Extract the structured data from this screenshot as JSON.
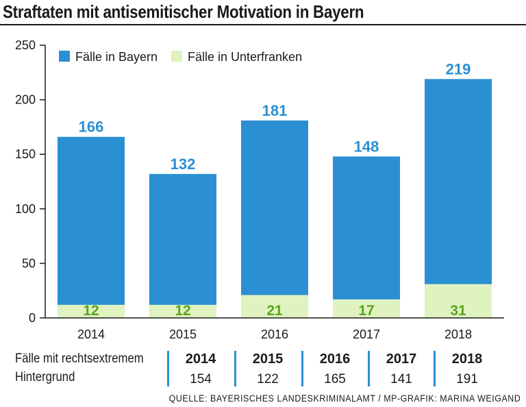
{
  "header": {
    "title": "Straftaten mit antisemitischer Motivation in Bayern"
  },
  "chart_data": {
    "type": "bar",
    "stacked": "overlay",
    "title": "Straftaten mit antisemitischer Motivation in Bayern",
    "categories": [
      "2014",
      "2015",
      "2016",
      "2017",
      "2018"
    ],
    "series": [
      {
        "name": "Fälle in Bayern",
        "color": "#2b8fd3",
        "values": [
          166,
          132,
          181,
          148,
          219
        ]
      },
      {
        "name": "Fälle in Unterfranken",
        "color": "#dff2bf",
        "values": [
          12,
          12,
          21,
          17,
          31
        ]
      }
    ],
    "yticks": [
      "0",
      "50",
      "100",
      "150",
      "200",
      "250"
    ],
    "ylim": [
      0,
      250
    ],
    "legend": "top-left",
    "label_colors": {
      "bayern": "#2b8fd3",
      "unterfranken": "#5aa51e"
    }
  },
  "footer": {
    "label_line1": "Fälle mit rechtsextremem",
    "label_line2": "Hintergrund",
    "years": [
      "2014",
      "2015",
      "2016",
      "2017",
      "2018"
    ],
    "values": [
      "154",
      "122",
      "165",
      "141",
      "191"
    ]
  },
  "source": "QUELLE: BAYERISCHES LANDESKRIMINALAMT / MP-GRAFIK: MARINA WEIGAND"
}
